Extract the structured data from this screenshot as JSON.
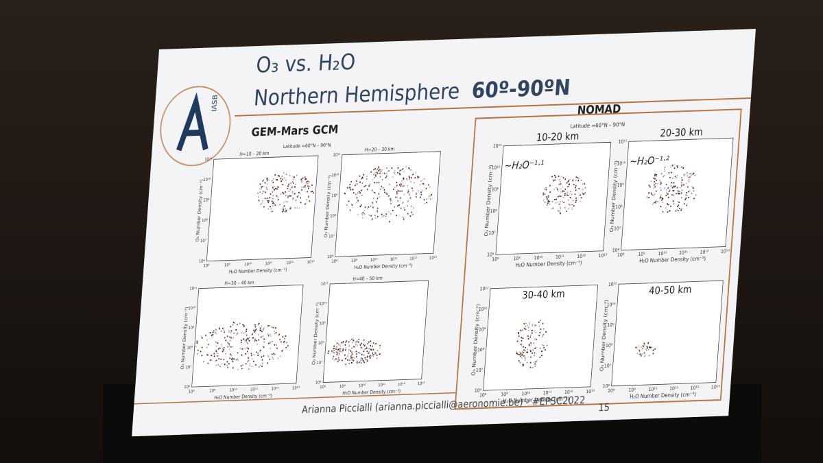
{
  "slide": {
    "title_line1": "O₃ vs. H₂O",
    "title_line2": "Northern Hemisphere",
    "title_line2_bold": "60º-90ºN",
    "logo_text": "IASB",
    "left_heading": "GEM-Mars GCM",
    "right_heading": "NOMAD",
    "latitude": "Latitude =60°N – 90°N",
    "x_axis_label": "H₂O Number Density (cm⁻³)",
    "y_axis_label": "O₃ Number Density (cm⁻³)",
    "xticks": [
      "10⁸",
      "10⁹",
      "10¹⁰",
      "10¹¹",
      "10¹²",
      "10¹³"
    ],
    "yticks": [
      "10⁶",
      "10⁷",
      "10⁸",
      "10⁹",
      "10¹⁰",
      "10¹¹"
    ],
    "gcm_panels": [
      {
        "title": "H=10 – 20 km"
      },
      {
        "title": "H=20 – 30 km"
      },
      {
        "title": "H=30 – 40 km"
      },
      {
        "title": "H=40 – 50 km"
      }
    ],
    "nomad_panels": [
      {
        "label": "10-20 km",
        "fit": "~H₂O⁻¹·¹"
      },
      {
        "label": "20-30 km",
        "fit": "~H₂O⁻¹·²"
      },
      {
        "label": "30-40 km"
      },
      {
        "label": "40-50 km"
      }
    ],
    "footer": "Arianna Piccialli (arianna.piccialli@aeronomie.be) - #EPSC2022",
    "page_number": "15"
  }
}
